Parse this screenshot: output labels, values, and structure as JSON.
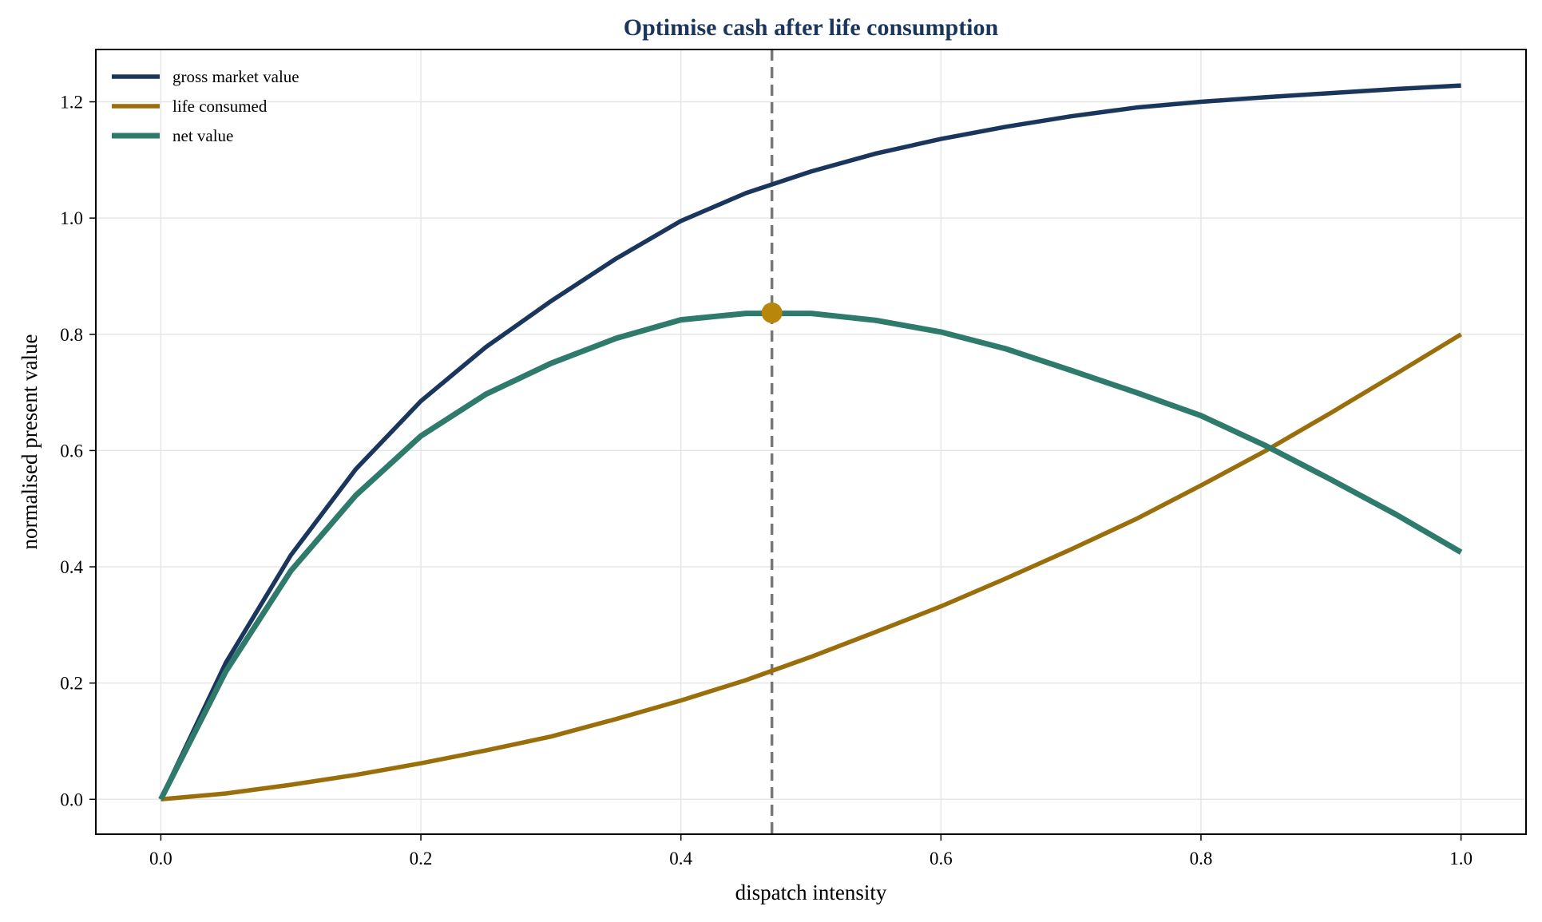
{
  "chart_data": {
    "type": "line",
    "title": "Optimise cash after life consumption",
    "xlabel": "dispatch intensity",
    "ylabel": "normalised present value",
    "xlim": [
      -0.05,
      1.05
    ],
    "ylim": [
      -0.06,
      1.29
    ],
    "xticks": [
      0.0,
      0.2,
      0.4,
      0.6,
      0.8,
      1.0
    ],
    "xtick_labels": [
      "0.0",
      "0.2",
      "0.4",
      "0.6",
      "0.8",
      "1.0"
    ],
    "yticks": [
      0.0,
      0.2,
      0.4,
      0.6,
      0.8,
      1.0,
      1.2
    ],
    "ytick_labels": [
      "0.0",
      "0.2",
      "0.4",
      "0.6",
      "0.8",
      "1.0",
      "1.2"
    ],
    "grid": true,
    "legend_position": "top-left",
    "x": [
      0.0,
      0.05,
      0.1,
      0.15,
      0.2,
      0.25,
      0.3,
      0.35,
      0.4,
      0.45,
      0.5,
      0.55,
      0.6,
      0.65,
      0.7,
      0.75,
      0.8,
      0.85,
      0.9,
      0.95,
      1.0
    ],
    "series": [
      {
        "name": "gross market value",
        "color": "#1b365d",
        "values": [
          0.0,
          0.235,
          0.42,
          0.568,
          0.685,
          0.778,
          0.857,
          0.93,
          0.995,
          1.043,
          1.08,
          1.111,
          1.136,
          1.157,
          1.175,
          1.19,
          1.2,
          1.208,
          1.215,
          1.222,
          1.228
        ]
      },
      {
        "name": "life consumed",
        "color": "#9a6e0b",
        "values": [
          0.0,
          0.01,
          0.025,
          0.042,
          0.062,
          0.084,
          0.108,
          0.138,
          0.17,
          0.205,
          0.245,
          0.288,
          0.332,
          0.38,
          0.43,
          0.482,
          0.54,
          0.6,
          0.665,
          0.732,
          0.8
        ]
      },
      {
        "name": "net value",
        "color": "#2e7a6b",
        "values": [
          0.0,
          0.22,
          0.393,
          0.523,
          0.625,
          0.697,
          0.75,
          0.793,
          0.825,
          0.836,
          0.836,
          0.824,
          0.804,
          0.775,
          0.738,
          0.7,
          0.66,
          0.608,
          0.55,
          0.49,
          0.425
        ]
      }
    ],
    "optimum": {
      "x": 0.47,
      "y": 0.837,
      "color": "#b8860b"
    },
    "vline": {
      "x": 0.47,
      "color": "#777777"
    }
  }
}
